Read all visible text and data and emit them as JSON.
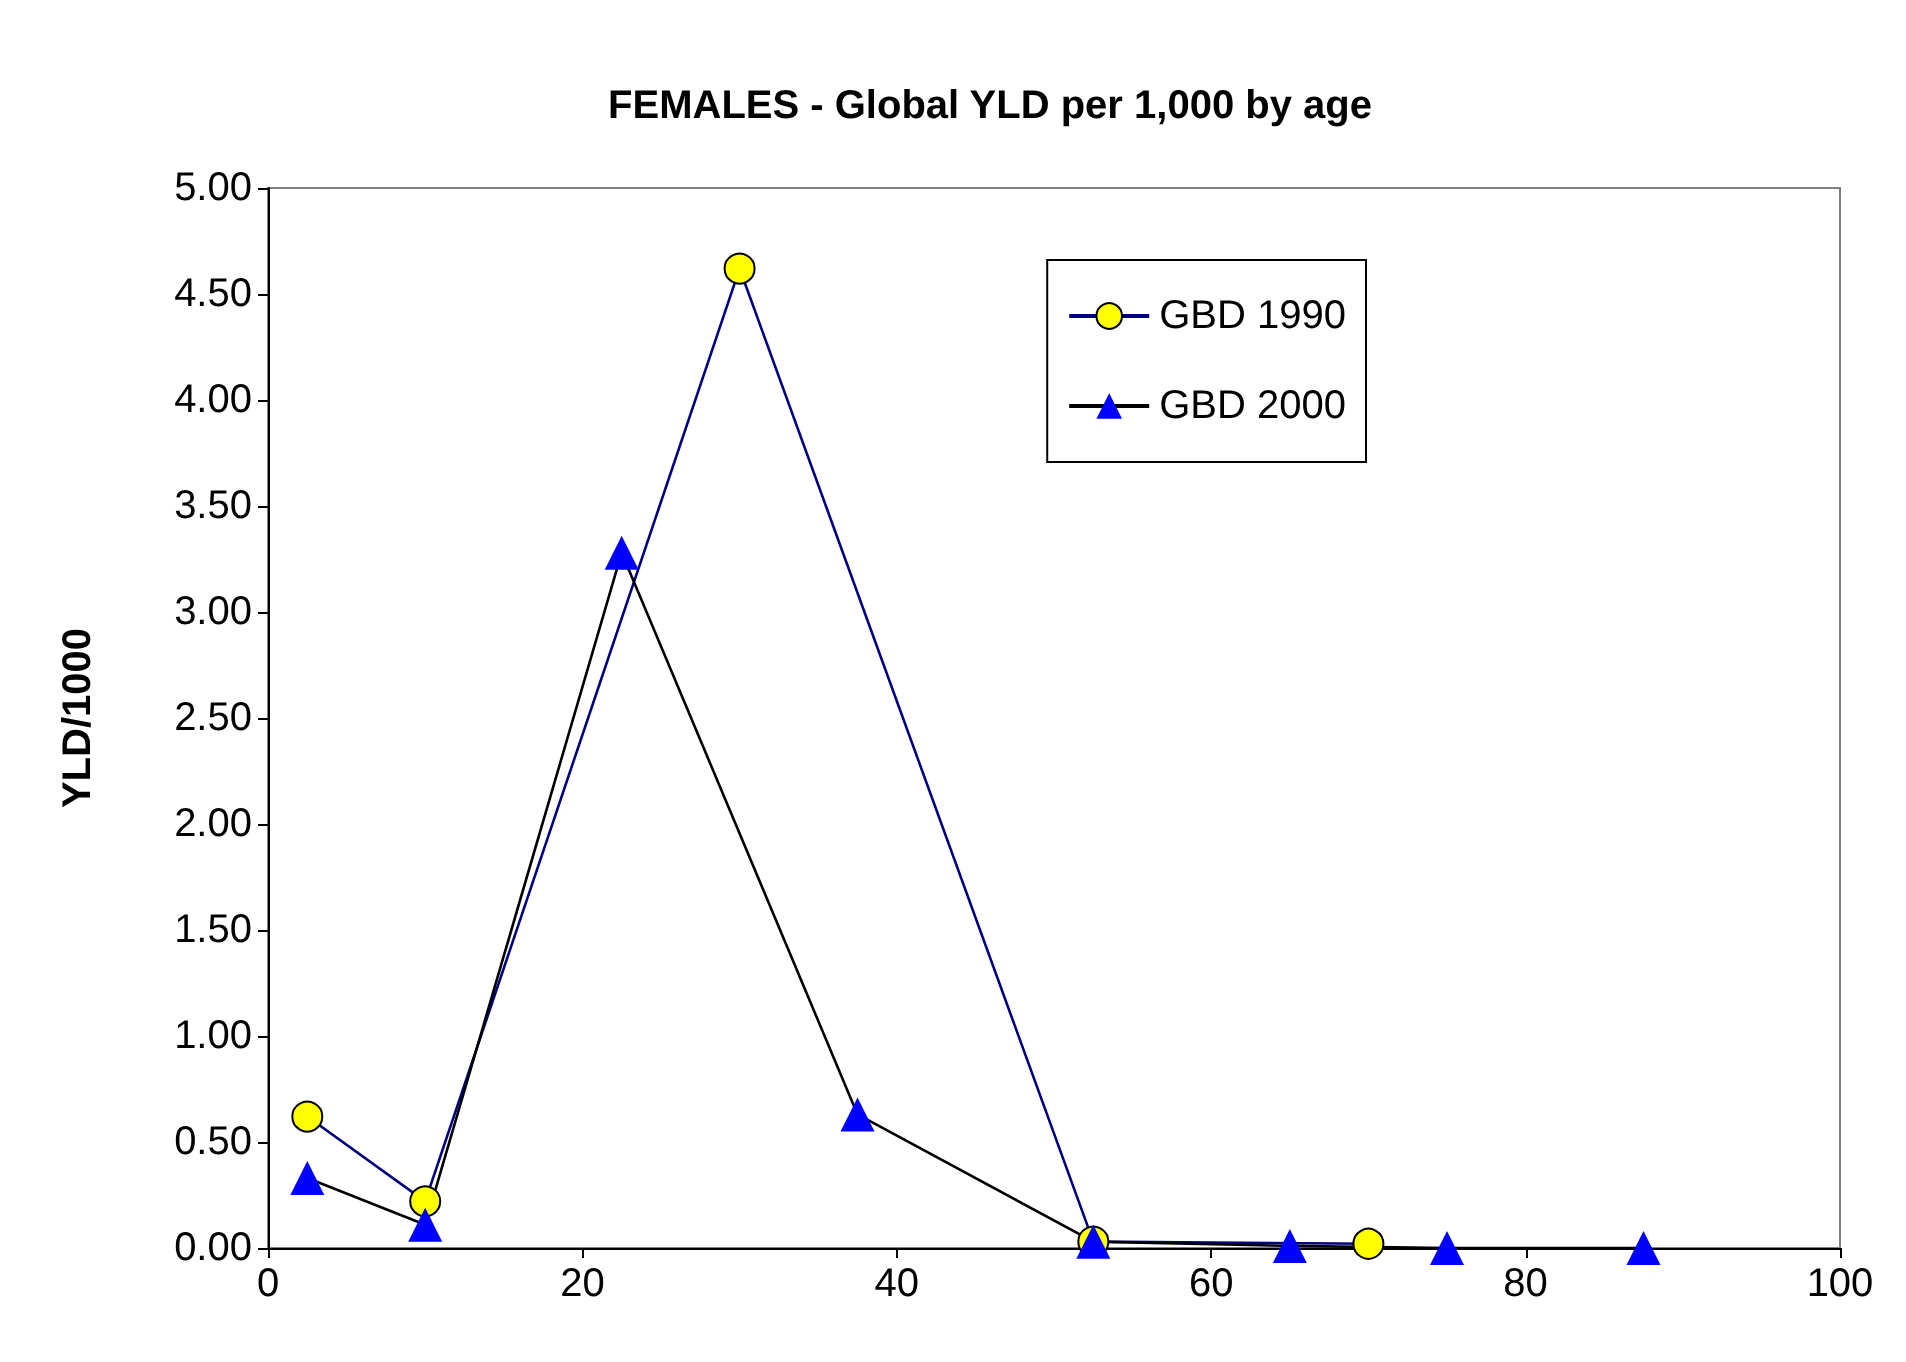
{
  "chart_data": {
    "type": "line",
    "title": "FEMALES - Global YLD per 1,000 by age",
    "ylabel": "YLD/1000",
    "xlim": [
      0,
      100
    ],
    "xticks": [
      0,
      20,
      40,
      60,
      80,
      100
    ],
    "ylim": [
      0,
      5
    ],
    "yticks": [
      {
        "value": 0,
        "label": "0.00"
      },
      {
        "value": 0.5,
        "label": "0.50"
      },
      {
        "value": 1,
        "label": "1.00"
      },
      {
        "value": 1.5,
        "label": "1.50"
      },
      {
        "value": 2,
        "label": "2.00"
      },
      {
        "value": 2.5,
        "label": "2.50"
      },
      {
        "value": 3,
        "label": "3.00"
      },
      {
        "value": 3.5,
        "label": "3.50"
      },
      {
        "value": 4,
        "label": "4.00"
      },
      {
        "value": 4.5,
        "label": "4.50"
      },
      {
        "value": 5,
        "label": "5.00"
      }
    ],
    "grid": false,
    "legend": "top right",
    "series": [
      {
        "name": "GBD 1990",
        "color": "#000080",
        "marker": "circle",
        "x": [
          2.5,
          10,
          30,
          52.5,
          70
        ],
        "values": [
          0.62,
          0.22,
          4.62,
          0.03,
          0.02
        ]
      },
      {
        "name": "GBD 2000",
        "color": "#000000",
        "marker": "triangle",
        "x": [
          2.5,
          10,
          22.5,
          37.5,
          52.5,
          65,
          75,
          87.5
        ],
        "values": [
          0.33,
          0.11,
          3.28,
          0.63,
          0.03,
          0.01,
          0,
          0
        ]
      }
    ]
  }
}
